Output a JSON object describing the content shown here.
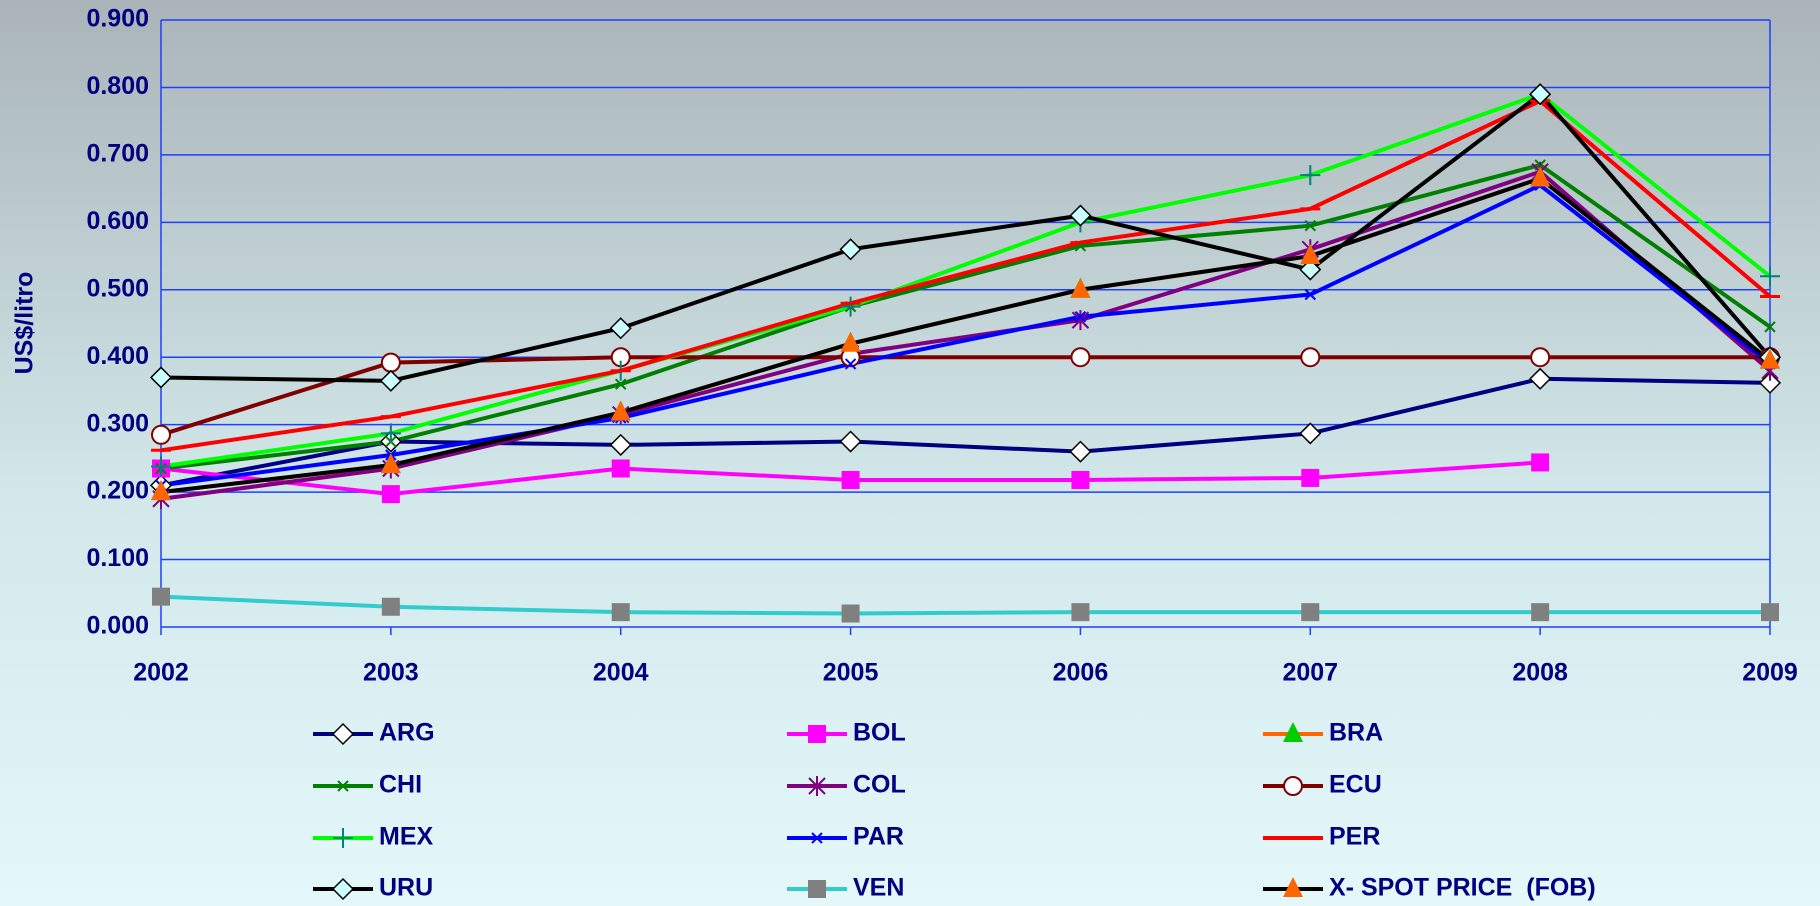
{
  "chart_data": {
    "type": "line",
    "ylabel": "US$/litro",
    "categories": [
      "2002",
      "2003",
      "2004",
      "2005",
      "2006",
      "2007",
      "2008",
      "2009"
    ],
    "ylim": [
      0,
      0.9
    ],
    "yticks": [
      {
        "value": 0,
        "label": "0.000"
      },
      {
        "value": 0.1,
        "label": "0.100"
      },
      {
        "value": 0.2,
        "label": "0.200"
      },
      {
        "value": 0.3,
        "label": "0.300"
      },
      {
        "value": 0.4,
        "label": "0.400"
      },
      {
        "value": 0.5,
        "label": "0.500"
      },
      {
        "value": 0.6,
        "label": "0.600"
      },
      {
        "value": 0.7,
        "label": "0.700"
      },
      {
        "value": 0.8,
        "label": "0.800"
      },
      {
        "value": 0.9,
        "label": "0.900"
      }
    ],
    "grid": true,
    "series": [
      {
        "name": "ARG",
        "color": "#000080",
        "marker": "diamond",
        "marker_color": "#ffffff",
        "values": [
          0.21,
          0.275,
          0.27,
          0.275,
          0.26,
          0.287,
          0.368,
          0.362
        ]
      },
      {
        "name": "BOL",
        "color": "#ff00ff",
        "marker": "square",
        "marker_color": "#ff00ff",
        "values": [
          0.235,
          0.197,
          0.235,
          0.218,
          0.218,
          0.221,
          0.244,
          null
        ]
      },
      {
        "name": "BRA",
        "color": "#ff6600",
        "marker": "triangle",
        "marker_color": "#00cc00",
        "values": [
          0.2,
          0.24,
          0.318,
          0.42,
          0.5,
          0.55,
          0.665,
          0.395
        ]
      },
      {
        "name": "CHI",
        "color": "#008000",
        "marker": "x",
        "marker_color": "#008000",
        "values": [
          0.235,
          0.275,
          0.36,
          0.475,
          0.565,
          0.595,
          0.685,
          0.445
        ]
      },
      {
        "name": "COL",
        "color": "#800080",
        "marker": "star",
        "marker_color": "#800080",
        "values": [
          0.19,
          0.235,
          0.315,
          0.405,
          0.455,
          0.56,
          0.675,
          0.38
        ]
      },
      {
        "name": "ECU",
        "color": "#800000",
        "marker": "circle",
        "marker_color": "#ffffff",
        "values": [
          0.285,
          0.392,
          0.4,
          0.4,
          0.4,
          0.4,
          0.4,
          0.4
        ]
      },
      {
        "name": "MEX",
        "color": "#00ff00",
        "marker": "plus",
        "marker_color": "#008080",
        "values": [
          0.238,
          0.287,
          0.38,
          0.475,
          0.6,
          0.67,
          0.79,
          0.52
        ]
      },
      {
        "name": "PAR",
        "color": "#0000ff",
        "marker": "x",
        "marker_color": "#0000ff",
        "values": [
          0.21,
          0.255,
          0.31,
          0.39,
          0.46,
          0.493,
          0.655,
          0.39
        ]
      },
      {
        "name": "PER",
        "color": "#ff0000",
        "marker": "dash",
        "marker_color": "#ff0000",
        "values": [
          0.262,
          0.312,
          0.38,
          0.48,
          0.57,
          0.62,
          0.78,
          0.49
        ]
      },
      {
        "name": "URU",
        "color": "#000000",
        "marker": "diamond",
        "marker_color": "#ccffff",
        "values": [
          0.37,
          0.365,
          0.443,
          0.56,
          0.61,
          0.53,
          0.79,
          0.4
        ]
      },
      {
        "name": "VEN",
        "color": "#33cccc",
        "marker": "square",
        "marker_color": "#808080",
        "values": [
          0.045,
          0.03,
          0.022,
          0.02,
          0.022,
          0.022,
          0.022,
          0.022
        ]
      },
      {
        "name": "X- SPOT PRICE  (FOB)",
        "color": "#000000",
        "marker": "triangle",
        "marker_color": "#ff6600",
        "values": [
          0.2,
          0.24,
          0.318,
          0.42,
          0.5,
          0.55,
          0.665,
          0.395
        ]
      }
    ]
  }
}
